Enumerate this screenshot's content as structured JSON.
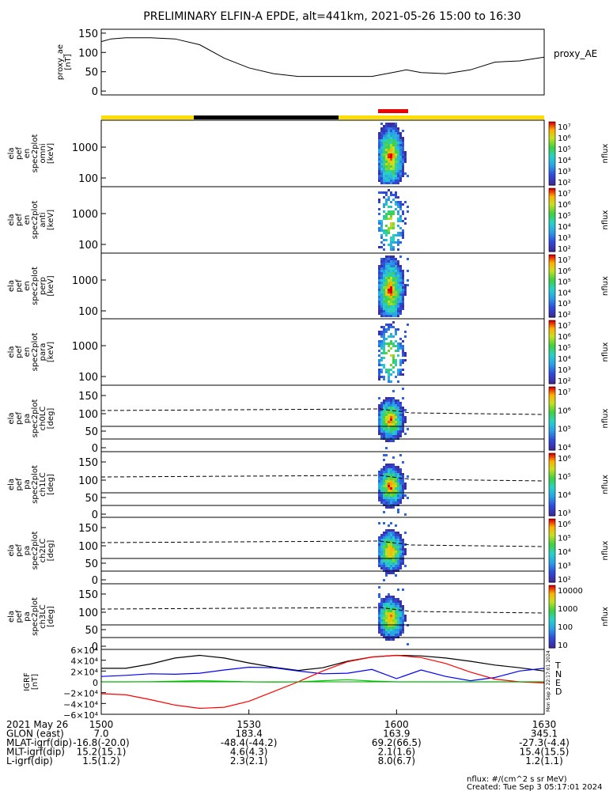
{
  "title": "PRELIMINARY ELFIN-A EPDE, alt=441km, 2021-05-26 15:00 to 16:30",
  "chart_data": [
    {
      "type": "line",
      "ylabel": [
        "proxy_ae",
        "[nT]"
      ],
      "legend": "proxy_AE",
      "ylim": [
        -10,
        160
      ],
      "yticks": [
        "150",
        "100",
        "50",
        "0"
      ],
      "x": [
        0,
        2,
        5,
        10,
        15,
        20,
        25,
        30,
        35,
        40,
        45,
        50,
        55,
        60,
        62,
        65,
        70,
        75,
        80,
        85,
        90
      ],
      "values": [
        128,
        135,
        138,
        138,
        135,
        120,
        85,
        60,
        45,
        38,
        38,
        38,
        38,
        50,
        55,
        48,
        45,
        55,
        75,
        78,
        88
      ]
    },
    {
      "type": "heatmap",
      "ylabel": [
        "ela",
        "pef",
        "en",
        "spec2plot",
        "omni",
        "[keV]"
      ],
      "yticks": [
        "1000",
        "100"
      ],
      "colorbar": {
        "label": "nflux",
        "ticks": [
          "10⁷",
          "10⁶",
          "10⁵",
          "10⁴",
          "10³",
          "10²"
        ]
      }
    },
    {
      "type": "heatmap",
      "ylabel": [
        "ela",
        "pef",
        "en",
        "spec2plot",
        "anti",
        "[keV]"
      ],
      "yticks": [
        "1000",
        "100"
      ],
      "colorbar": {
        "label": "nflux",
        "ticks": [
          "10⁷",
          "10⁶",
          "10⁵",
          "10⁴",
          "10³",
          "10²"
        ]
      }
    },
    {
      "type": "heatmap",
      "ylabel": [
        "ela",
        "pef",
        "en",
        "spec2plot",
        "perp",
        "[keV]"
      ],
      "yticks": [
        "1000",
        "100"
      ],
      "colorbar": {
        "label": "nflux",
        "ticks": [
          "10⁷",
          "10⁶",
          "10⁵",
          "10⁴",
          "10³",
          "10²"
        ]
      }
    },
    {
      "type": "heatmap",
      "ylabel": [
        "ela",
        "pef",
        "en",
        "spec2plot",
        "para",
        "[keV]"
      ],
      "yticks": [
        "1000",
        "100"
      ],
      "colorbar": {
        "label": "nflux",
        "ticks": [
          "10⁷",
          "10⁶",
          "10⁵",
          "10⁴",
          "10³",
          "10²"
        ]
      }
    },
    {
      "type": "heatmap",
      "ylabel": [
        "ela",
        "pef",
        "pa",
        "spec2plot",
        "ch0LC",
        "[deg]"
      ],
      "yticks": [
        "150",
        "100",
        "50",
        "0"
      ],
      "colorbar": {
        "label": "nflux",
        "ticks": [
          "10⁷",
          "10⁶",
          "10⁵",
          "10⁴"
        ]
      }
    },
    {
      "type": "heatmap",
      "ylabel": [
        "ela",
        "pef",
        "pa",
        "spec2plot",
        "ch1LC",
        "[deg]"
      ],
      "yticks": [
        "150",
        "100",
        "50",
        "0"
      ],
      "colorbar": {
        "label": "nflux",
        "ticks": [
          "10⁶",
          "10⁵",
          "10⁴",
          "10³"
        ]
      }
    },
    {
      "type": "heatmap",
      "ylabel": [
        "ela",
        "pef",
        "pa",
        "spec2plot",
        "ch2LC",
        "[deg]"
      ],
      "yticks": [
        "150",
        "100",
        "50",
        "0"
      ],
      "colorbar": {
        "label": "nflux",
        "ticks": [
          "10⁶",
          "10⁵",
          "10⁴",
          "10³",
          "10²"
        ]
      }
    },
    {
      "type": "heatmap",
      "ylabel": [
        "ela",
        "pef",
        "pa",
        "spec2plot",
        "ch3LC",
        "[deg]"
      ],
      "yticks": [
        "150",
        "100",
        "50",
        "0"
      ],
      "colorbar": {
        "label": "nflux",
        "ticks": [
          "10000",
          "1000",
          "100",
          "10"
        ]
      }
    },
    {
      "type": "line",
      "ylabel": [
        "IGRF",
        "[nT]"
      ],
      "ylim": [
        -60000,
        60000
      ],
      "yticks": [
        "6×10⁴",
        "4×10⁴",
        "2×10⁴",
        "0",
        "−2×10⁴",
        "−4×10⁴",
        "−6×10⁴"
      ],
      "x": [
        0,
        5,
        10,
        15,
        20,
        25,
        30,
        35,
        40,
        45,
        50,
        55,
        60,
        65,
        70,
        75,
        80,
        85,
        90
      ],
      "series": [
        {
          "name": "T",
          "color": "#000000",
          "values": [
            25000,
            25000,
            33000,
            44000,
            49000,
            44000,
            35000,
            27000,
            21000,
            26000,
            38000,
            46000,
            49000,
            48000,
            44000,
            38000,
            31000,
            26000,
            20000
          ]
        },
        {
          "name": "N",
          "color": "#0000ff",
          "values": [
            10000,
            12000,
            15000,
            14000,
            16000,
            22000,
            27000,
            26000,
            20000,
            15000,
            16000,
            23000,
            6000,
            22000,
            10000,
            2000,
            8000,
            20000,
            25000
          ]
        },
        {
          "name": "E",
          "color": "#00cc00",
          "values": [
            0,
            0,
            300,
            1200,
            2000,
            1200,
            0,
            -400,
            0,
            2000,
            4000,
            1500,
            0,
            0,
            0,
            0,
            0,
            0,
            0
          ]
        },
        {
          "name": "D",
          "color": "#ff0000",
          "values": [
            -22000,
            -24000,
            -33000,
            -43000,
            -49000,
            -47000,
            -36000,
            -18000,
            0,
            20000,
            37000,
            46000,
            49000,
            45000,
            34000,
            18000,
            5000,
            0,
            -2000
          ]
        }
      ]
    }
  ],
  "coord_rows": [
    {
      "label": "2021 May 26",
      "values": [
        "1500",
        "1530",
        "1600",
        "1630"
      ]
    },
    {
      "label": "GLON (east)",
      "values": [
        "7.0",
        "183.4",
        "163.9",
        "345.1"
      ]
    },
    {
      "label": "MLAT-igrf(dip)",
      "values": [
        "-16.8(-20.0)",
        "-48.4(-44.2)",
        "69.2(66.5)",
        "-27.3(-4.4)"
      ]
    },
    {
      "label": "MLT-igrf(dip)",
      "values": [
        "15.2(15.1)",
        "4.6(4.3)",
        "2.1(1.6)",
        "15.4(15.5)"
      ]
    },
    {
      "label": "L-igrf(dip)",
      "values": [
        "1.5(1.2)",
        "2.3(2.1)",
        "8.0(6.7)",
        "1.2(1.1)"
      ]
    }
  ],
  "footer": {
    "units": "nflux: #/(cm^2 s sr MeV)",
    "created": "Created: Tue Sep  3 05:17:01 2024",
    "side_stamp": "Mon Sep  2 22:17:01 2024"
  },
  "colors": {
    "orbit_bar_yellow": "#ffdd00",
    "orbit_bar_black": "#000000",
    "science_zone_red": "#ee0000"
  }
}
